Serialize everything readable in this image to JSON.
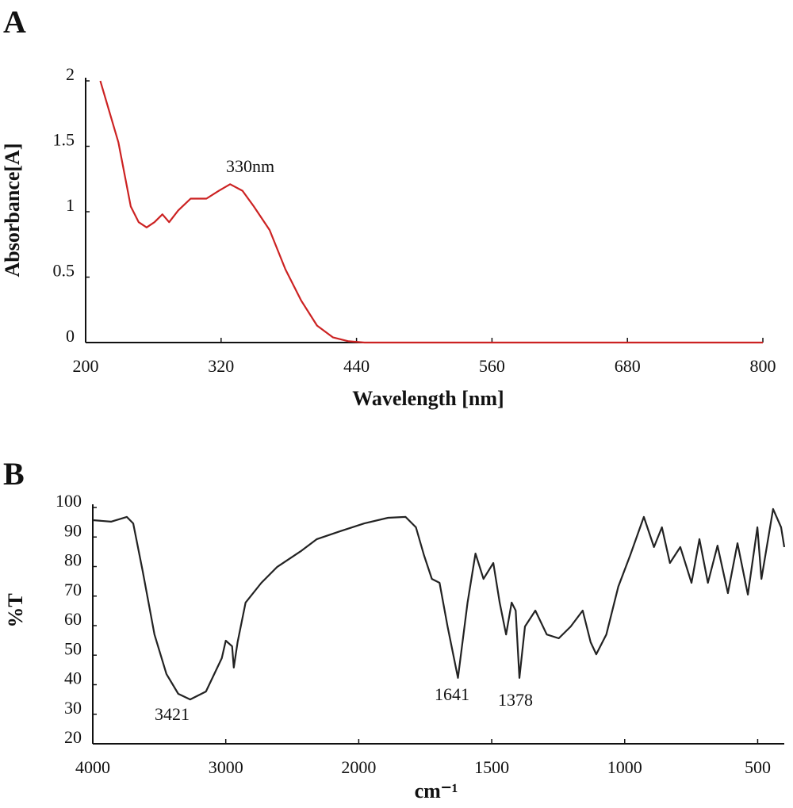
{
  "chart_data": [
    {
      "type": "line",
      "label": "A",
      "xlabel": "Wavelength [nm]",
      "ylabel": "Absorbance[A]",
      "color": "#cc2222",
      "annotations": [
        "330nm"
      ],
      "xlim": [
        200,
        800
      ],
      "xticks": [
        200,
        320,
        440,
        560,
        680,
        800
      ],
      "ylim": [
        0,
        2
      ],
      "yticks": [
        0,
        0.5,
        1,
        1.5,
        2
      ],
      "x": [
        213,
        229,
        240,
        247,
        254,
        261,
        268,
        274,
        282,
        293,
        307,
        318,
        328,
        339,
        349,
        363,
        377,
        391,
        405,
        419,
        433,
        447,
        500,
        600,
        700,
        800
      ],
      "values": [
        2.0,
        1.53,
        1.04,
        0.92,
        0.88,
        0.92,
        0.98,
        0.92,
        1.01,
        1.1,
        1.1,
        1.16,
        1.21,
        1.16,
        1.04,
        0.86,
        0.56,
        0.32,
        0.13,
        0.04,
        0.01,
        0,
        0,
        0,
        0,
        0
      ]
    },
    {
      "type": "line",
      "label": "B",
      "xlabel": "cm⁻¹",
      "ylabel": "%T",
      "color": "#222222",
      "annotations": [
        "3421",
        "1641",
        "1378"
      ],
      "xlim": [
        4000,
        400
      ],
      "xticks": [
        4000,
        3000,
        2000,
        1500,
        1000,
        500
      ],
      "ylim": [
        20,
        100
      ],
      "yticks": [
        20,
        30,
        40,
        50,
        60,
        70,
        80,
        90,
        100
      ],
      "x": [
        4000,
        3863,
        3744,
        3696,
        3625,
        3536,
        3446,
        3357,
        3268,
        3149,
        3030,
        3000,
        2952,
        2940,
        2911,
        2851,
        2732,
        2613,
        2435,
        2315,
        2137,
        1979,
        1890,
        1824,
        1785,
        1755,
        1725,
        1696,
        1666,
        1627,
        1591,
        1561,
        1531,
        1494,
        1470,
        1446,
        1425,
        1410,
        1396,
        1375,
        1336,
        1293,
        1248,
        1203,
        1158,
        1128,
        1107,
        1069,
        1024,
        979,
        928,
        890,
        860,
        830,
        791,
        749,
        719,
        687,
        651,
        612,
        576,
        537,
        501,
        486,
        442,
        412,
        400
      ],
      "values": [
        95.7,
        95.2,
        96.8,
        94.6,
        78.5,
        57,
        43.6,
        36.9,
        35,
        37.7,
        49,
        54.9,
        53,
        45.8,
        54.4,
        67.8,
        74.5,
        79.9,
        85.2,
        89.3,
        92,
        94.6,
        96.5,
        96.8,
        93.3,
        83.9,
        75.8,
        74.5,
        59.7,
        42.3,
        67.8,
        84.4,
        75.8,
        81.2,
        67.8,
        57,
        67.8,
        65.1,
        42.3,
        59.7,
        65.1,
        57,
        55.7,
        59.7,
        65.1,
        54.4,
        50.3,
        57,
        73.2,
        83.9,
        96.8,
        86.6,
        93.3,
        81.2,
        86.6,
        74.5,
        89.3,
        74.5,
        87.1,
        71,
        87.9,
        70.5,
        93.3,
        75.8,
        99.5,
        93.3,
        86.6
      ]
    }
  ]
}
